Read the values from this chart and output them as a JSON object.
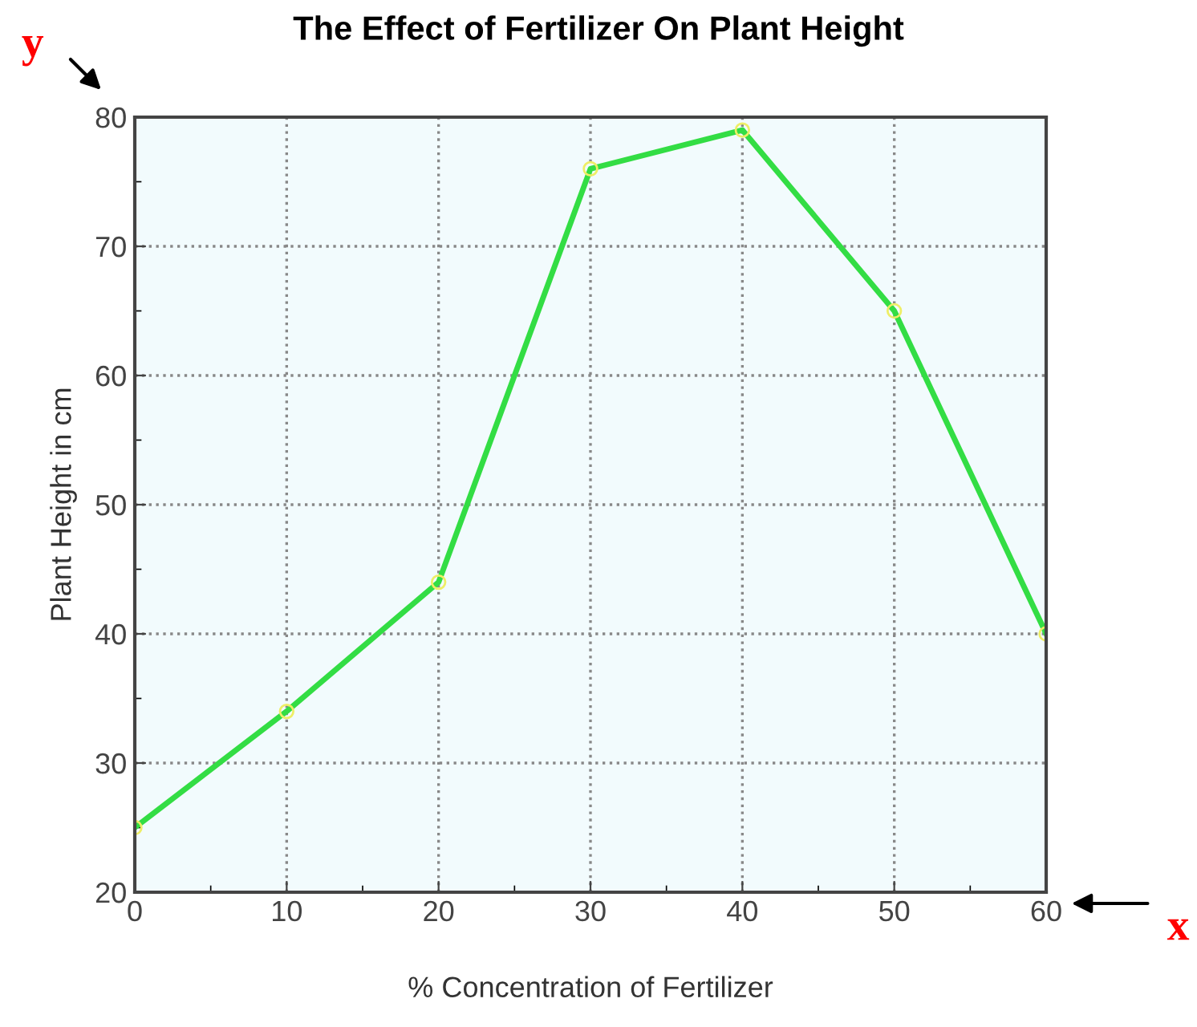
{
  "chart_data": {
    "type": "line",
    "title": "The Effect of Fertilizer On Plant Height",
    "xlabel": "% Concentration of Fertilizer",
    "ylabel": "Plant Height in cm",
    "x": [
      0,
      10,
      20,
      30,
      40,
      50,
      60
    ],
    "series": [
      {
        "color": "#33dd44",
        "values": [
          25,
          34,
          44,
          76,
          79,
          65,
          40
        ]
      }
    ],
    "xlim": [
      0,
      60
    ],
    "xticks": [
      0,
      10,
      20,
      30,
      40,
      50,
      60
    ],
    "ylim": [
      20,
      80
    ],
    "yticks": [
      20,
      30,
      40,
      50,
      60,
      70,
      80
    ],
    "grid": true,
    "marker": "circle",
    "line_style": "solid",
    "legend": false,
    "annotations": [
      "y",
      "x"
    ]
  }
}
